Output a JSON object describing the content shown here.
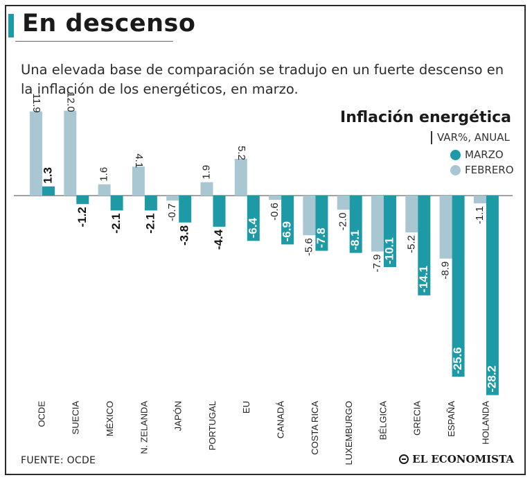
{
  "header": {
    "title": "En descenso",
    "subtitle": "Una elevada base de comparación se tradujo en un fuerte descenso en la inflación de los energéticos, en marzo."
  },
  "legend": {
    "title": "Inflación energética",
    "subtitle": "VAR%, ANUAL",
    "items": [
      "MARZO",
      "FEBRERO"
    ]
  },
  "colors": {
    "accent": "#1e9aa6",
    "marzo": "#1e9aa6",
    "febrero": "#a9c7d3",
    "title_bar": "#1e9aa6"
  },
  "footer": {
    "source": "FUENTE:  OCDE",
    "brand": "EL ECONOMISTA"
  },
  "chart_data": {
    "type": "bar",
    "title": "Inflación energética",
    "ylabel": "VAR%, ANUAL",
    "xlabel": "",
    "ylim": [
      -28.2,
      12.0
    ],
    "grid": false,
    "categories": [
      "OCDE",
      "SUECIA",
      "MÉXICO",
      "N. ZELANDA",
      "JAPÓN",
      "PORTUGAL",
      "EU",
      "CANADÁ",
      "COSTA RICA",
      "LUXEMBURGO",
      "BÉLGICA",
      "GRECIA",
      "ESPAÑA",
      "HOLANDA"
    ],
    "series": [
      {
        "name": "FEBRERO",
        "values": [
          11.9,
          12.0,
          1.6,
          4.1,
          -0.7,
          1.9,
          5.2,
          -0.6,
          -5.6,
          -2.0,
          -7.9,
          -5.2,
          -8.9,
          -1.1
        ]
      },
      {
        "name": "MARZO",
        "values": [
          1.3,
          -1.2,
          -2.1,
          -2.1,
          -3.8,
          -4.4,
          -6.4,
          -6.9,
          -7.8,
          -8.1,
          -10.1,
          -14.1,
          -25.6,
          -28.2
        ]
      }
    ]
  }
}
